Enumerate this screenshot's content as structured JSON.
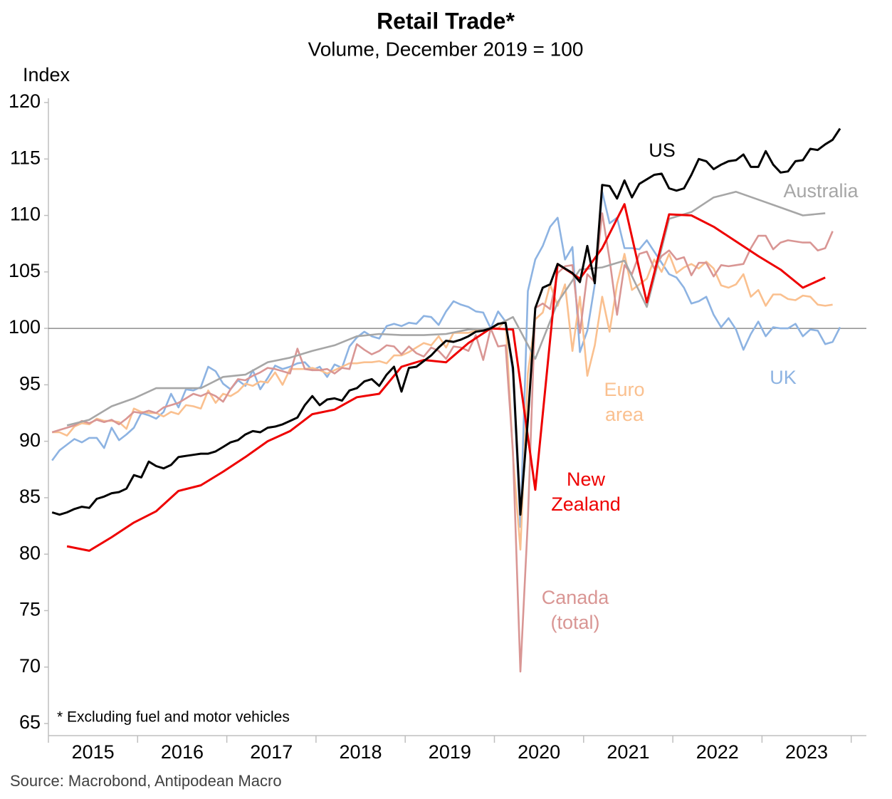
{
  "chart_data": {
    "type": "line",
    "title": "Retail Trade*",
    "subtitle": "Volume, December 2019 = 100",
    "y_axis_label": "Index",
    "note": "* Excluding fuel and motor vehicles",
    "source": "Source: Macrobond, Antipodean Macro",
    "ylim": [
      64,
      120
    ],
    "yticks": [
      65,
      70,
      75,
      80,
      85,
      90,
      95,
      100,
      105,
      110,
      115,
      120
    ],
    "xlim": [
      2015,
      2024.17
    ],
    "xticks": [
      2015,
      2016,
      2017,
      2018,
      2019,
      2020,
      2021,
      2022,
      2023
    ],
    "reference_line": 100,
    "x": [
      "2015-01",
      "2015-02",
      "2015-03",
      "2015-04",
      "2015-05",
      "2015-06",
      "2015-07",
      "2015-08",
      "2015-09",
      "2015-10",
      "2015-11",
      "2015-12",
      "2016-01",
      "2016-02",
      "2016-03",
      "2016-04",
      "2016-05",
      "2016-06",
      "2016-07",
      "2016-08",
      "2016-09",
      "2016-10",
      "2016-11",
      "2016-12",
      "2017-01",
      "2017-02",
      "2017-03",
      "2017-04",
      "2017-05",
      "2017-06",
      "2017-07",
      "2017-08",
      "2017-09",
      "2017-10",
      "2017-11",
      "2017-12",
      "2018-01",
      "2018-02",
      "2018-03",
      "2018-04",
      "2018-05",
      "2018-06",
      "2018-07",
      "2018-08",
      "2018-09",
      "2018-10",
      "2018-11",
      "2018-12",
      "2019-01",
      "2019-02",
      "2019-03",
      "2019-04",
      "2019-05",
      "2019-06",
      "2019-07",
      "2019-08",
      "2019-09",
      "2019-10",
      "2019-11",
      "2019-12",
      "2020-01",
      "2020-02",
      "2020-03",
      "2020-04",
      "2020-05",
      "2020-06",
      "2020-07",
      "2020-08",
      "2020-09",
      "2020-10",
      "2020-11",
      "2020-12",
      "2021-01",
      "2021-02",
      "2021-03",
      "2021-04",
      "2021-05",
      "2021-06",
      "2021-07",
      "2021-08",
      "2021-09",
      "2021-10",
      "2021-11",
      "2021-12",
      "2022-01",
      "2022-02",
      "2022-03",
      "2022-04",
      "2022-05",
      "2022-06",
      "2022-07",
      "2022-08",
      "2022-09",
      "2022-10",
      "2022-11",
      "2022-12",
      "2023-01",
      "2023-02",
      "2023-03",
      "2023-04",
      "2023-05",
      "2023-06",
      "2023-07",
      "2023-08",
      "2023-09",
      "2023-10",
      "2023-11"
    ],
    "series": [
      {
        "name": "UK",
        "color": "#8db3e2",
        "values": [
          88.3,
          89.2,
          89.7,
          90.2,
          89.9,
          90.3,
          90.3,
          89.4,
          91.2,
          90.1,
          90.6,
          91.2,
          92.5,
          92.3,
          92.0,
          92.6,
          94.2,
          93.0,
          94.6,
          94.5,
          94.8,
          96.6,
          96.2,
          95.1,
          94.6,
          95.4,
          94.9,
          96.3,
          94.6,
          95.6,
          96.7,
          96.4,
          96.6,
          96.9,
          97.0,
          96.3,
          96.6,
          95.7,
          96.8,
          96.5,
          98.4,
          99.2,
          99.7,
          99.3,
          99.1,
          100.2,
          100.4,
          100.2,
          100.5,
          100.4,
          101.1,
          101.0,
          100.3,
          101.5,
          102.4,
          102.1,
          101.9,
          101.5,
          101.4,
          100.0,
          101.5,
          100.6,
          96.0,
          82.4,
          103.3,
          106.1,
          107.3,
          109.0,
          109.8,
          106.1,
          107.2,
          97.9,
          99.8,
          103.9,
          112.1,
          109.3,
          109.8,
          107.1,
          107.1,
          107.0,
          107.8,
          106.8,
          105.8,
          104.8,
          104.5,
          103.6,
          102.2,
          102.4,
          102.8,
          101.2,
          100.1,
          100.9,
          99.9,
          98.1,
          99.5,
          100.6,
          99.3,
          100.1,
          100.0,
          100.0,
          100.4,
          99.3,
          99.9,
          99.8,
          98.6,
          98.8,
          100.1
        ]
      },
      {
        "name": "Euro area",
        "color": "#fac08f",
        "values": [
          90.8,
          90.8,
          90.5,
          91.3,
          91.6,
          91.5,
          92.0,
          91.8,
          91.8,
          91.7,
          91.1,
          92.9,
          92.6,
          92.5,
          92.5,
          92.2,
          92.6,
          92.4,
          93.2,
          93.1,
          92.9,
          94.5,
          93.4,
          94.2,
          94.0,
          94.4,
          95.1,
          94.9,
          95.3,
          95.2,
          96.1,
          95.0,
          96.4,
          96.4,
          96.4,
          96.5,
          96.3,
          96.0,
          96.3,
          96.6,
          96.9,
          96.9,
          97.0,
          97.0,
          97.1,
          96.9,
          97.6,
          97.6,
          97.9,
          98.3,
          98.7,
          98.5,
          99.3,
          98.3,
          99.6,
          99.6,
          99.6,
          99.8,
          99.9,
          100.0,
          100.0,
          100.7,
          88.7,
          80.4,
          96.0,
          100.8,
          101.4,
          103.9,
          102.0,
          103.9,
          98.0,
          102.8,
          95.8,
          98.5,
          102.8,
          99.7,
          103.9,
          106.6,
          103.4,
          103.9,
          104.4,
          106.1,
          105.0,
          106.6,
          104.9,
          105.4,
          105.7,
          105.3,
          105.9,
          105.3,
          103.8,
          103.6,
          103.9,
          104.8,
          102.8,
          103.4,
          102.0,
          103.0,
          103.0,
          102.6,
          102.5,
          102.9,
          102.8,
          102.1,
          102.0,
          102.1,
          null
        ]
      },
      {
        "name": "Canada (total)",
        "color": "#d99694",
        "values": [
          90.8,
          91.0,
          91.2,
          91.4,
          91.8,
          91.6,
          91.9,
          91.7,
          91.9,
          91.5,
          92.0,
          92.6,
          92.5,
          92.7,
          92.5,
          93.0,
          93.2,
          93.4,
          93.8,
          94.2,
          94.0,
          94.3,
          94.0,
          93.5,
          94.6,
          95.5,
          95.4,
          95.8,
          96.1,
          96.5,
          96.4,
          96.2,
          96.0,
          98.2,
          96.4,
          96.3,
          96.3,
          96.4,
          96.0,
          96.5,
          96.4,
          98.6,
          98.1,
          97.7,
          98.0,
          98.5,
          98.4,
          97.7,
          98.4,
          97.8,
          97.5,
          98.3,
          98.0,
          97.3,
          98.4,
          98.3,
          98.0,
          99.4,
          97.2,
          100.0,
          98.4,
          98.5,
          89.0,
          69.6,
          83.0,
          101.8,
          102.2,
          101.7,
          104.9,
          105.5,
          105.6,
          99.6,
          104.8,
          104.1,
          110.2,
          106.1,
          101.2,
          105.6,
          104.8,
          106.6,
          106.8,
          105.3,
          106.4,
          106.9,
          106.1,
          106.3,
          104.7,
          105.8,
          105.8,
          104.6,
          105.6,
          105.5,
          105.6,
          105.7,
          107.1,
          108.2,
          108.2,
          107.0,
          107.6,
          107.8,
          107.7,
          107.6,
          107.6,
          106.9,
          107.1,
          108.6,
          null
        ]
      },
      {
        "name": "Australia",
        "color": "#a6a6a6",
        "x": [
          "2015-03",
          "2015-06",
          "2015-09",
          "2015-12",
          "2016-03",
          "2016-06",
          "2016-09",
          "2016-12",
          "2017-03",
          "2017-06",
          "2017-09",
          "2017-12",
          "2018-03",
          "2018-06",
          "2018-09",
          "2018-12",
          "2019-03",
          "2019-06",
          "2019-09",
          "2019-12",
          "2020-03",
          "2020-06",
          "2020-09",
          "2020-12",
          "2021-03",
          "2021-06",
          "2021-09",
          "2021-12",
          "2022-03",
          "2022-06",
          "2022-09",
          "2022-12",
          "2023-03",
          "2023-06",
          "2023-09"
        ],
        "values": [
          91.4,
          91.9,
          93.1,
          93.8,
          94.7,
          94.7,
          94.7,
          95.7,
          95.9,
          97.0,
          97.4,
          98.0,
          98.5,
          99.3,
          99.5,
          99.4,
          99.4,
          99.5,
          99.9,
          100.0,
          101.0,
          97.3,
          102.3,
          105.2,
          105.4,
          106.0,
          101.9,
          109.7,
          110.3,
          111.6,
          112.1,
          111.4,
          110.7,
          110.0,
          110.2
        ]
      },
      {
        "name": "New Zealand",
        "color": "#ee0000",
        "x": [
          "2015-03",
          "2015-06",
          "2015-09",
          "2015-12",
          "2016-03",
          "2016-06",
          "2016-09",
          "2016-12",
          "2017-03",
          "2017-06",
          "2017-09",
          "2017-12",
          "2018-03",
          "2018-06",
          "2018-09",
          "2018-12",
          "2019-03",
          "2019-06",
          "2019-09",
          "2019-12",
          "2020-03",
          "2020-06",
          "2020-09",
          "2020-12",
          "2021-03",
          "2021-06",
          "2021-09",
          "2021-12",
          "2022-03",
          "2022-06",
          "2022-09",
          "2022-12",
          "2023-03",
          "2023-06",
          "2023-09"
        ],
        "values": [
          80.7,
          80.3,
          81.5,
          82.8,
          83.8,
          85.6,
          86.1,
          87.3,
          88.6,
          90.0,
          90.9,
          92.4,
          92.8,
          93.9,
          94.2,
          96.6,
          97.2,
          97.0,
          98.7,
          100.0,
          99.9,
          85.7,
          105.7,
          104.4,
          107.1,
          111.0,
          102.3,
          110.1,
          110.0,
          109.0,
          107.7,
          106.4,
          105.2,
          103.6,
          104.5
        ]
      },
      {
        "name": "US",
        "color": "#000000",
        "values": [
          83.7,
          83.5,
          83.7,
          84.0,
          84.2,
          84.1,
          84.9,
          85.1,
          85.4,
          85.5,
          85.8,
          87.0,
          86.8,
          88.2,
          87.8,
          87.6,
          87.9,
          88.6,
          88.7,
          88.8,
          88.9,
          88.9,
          89.1,
          89.5,
          89.9,
          90.1,
          90.6,
          90.9,
          90.8,
          91.2,
          91.3,
          91.5,
          91.8,
          92.1,
          93.2,
          94.0,
          93.2,
          93.7,
          93.8,
          93.6,
          94.5,
          94.7,
          95.3,
          95.5,
          94.9,
          95.9,
          96.6,
          94.4,
          96.5,
          96.6,
          97.1,
          97.6,
          98.3,
          98.9,
          98.8,
          99.0,
          99.3,
          99.7,
          99.8,
          100.0,
          100.4,
          100.5,
          96.5,
          83.5,
          91.9,
          101.8,
          103.6,
          103.9,
          105.7,
          105.3,
          104.9,
          104.1,
          107.3,
          104.0,
          112.7,
          112.6,
          111.5,
          113.1,
          111.6,
          112.8,
          113.2,
          113.6,
          113.7,
          112.4,
          112.2,
          112.4,
          113.6,
          115.0,
          114.8,
          114.1,
          114.5,
          114.8,
          114.9,
          115.4,
          114.3,
          114.3,
          115.7,
          114.5,
          113.8,
          113.9,
          114.8,
          114.9,
          115.9,
          115.8,
          116.3,
          116.7,
          117.7
        ]
      }
    ]
  }
}
